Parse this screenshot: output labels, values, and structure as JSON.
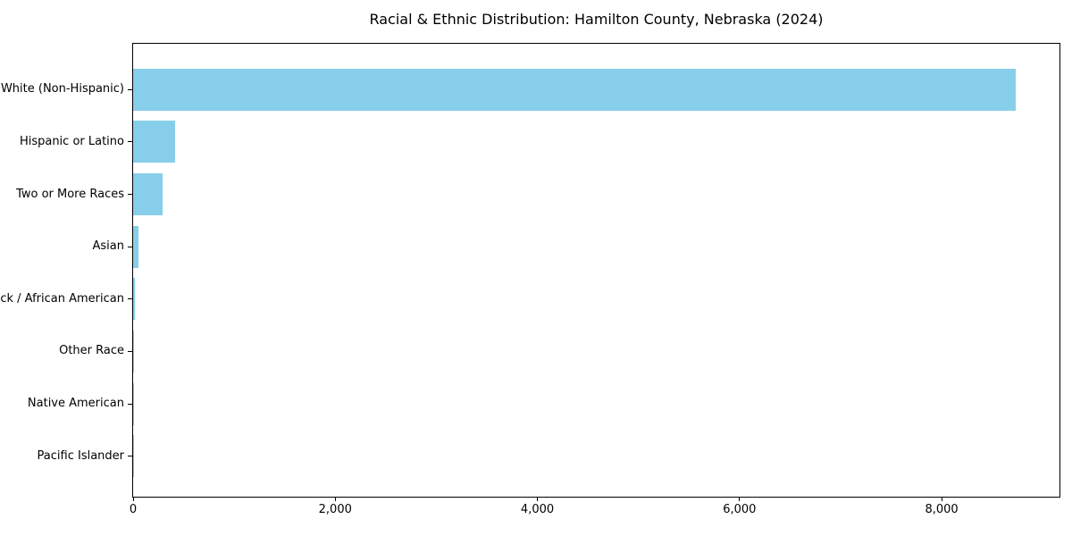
{
  "page": {
    "background_color": "#ffffff",
    "text_color": "#000000"
  },
  "chart_data": {
    "type": "bar",
    "orientation": "horizontal",
    "title": "Racial & Ethnic Distribution: Hamilton County, Nebraska (2024)",
    "categories": [
      "White (Non-Hispanic)",
      "Hispanic or Latino",
      "Two or More Races",
      "Asian",
      "Black / African American",
      "Other Race",
      "Native American",
      "Pacific Islander"
    ],
    "values": [
      8730,
      415,
      290,
      54,
      18,
      5,
      4,
      1
    ],
    "bar_color": "#87CEEB",
    "axis_color": "#000000",
    "xlim": [
      0,
      9166
    ],
    "x_ticks": [
      0,
      2000,
      4000,
      6000,
      8000
    ],
    "x_tick_labels": [
      "0",
      "2,000",
      "4,000",
      "6,000",
      "8,000"
    ],
    "xlabel": "",
    "ylabel": "",
    "grid": false,
    "legend": null,
    "category_order": "largest value on top"
  }
}
